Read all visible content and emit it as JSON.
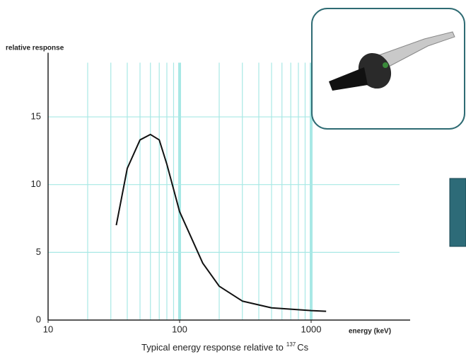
{
  "chart_data": {
    "type": "line",
    "y_label": "relative response",
    "x_label": "energy (keV)",
    "caption": {
      "text": "Typical energy response relative to",
      "superscript": "137",
      "element": "Cs"
    },
    "x": [
      33,
      40,
      50,
      60,
      70,
      80,
      100,
      150,
      200,
      300,
      500,
      1000,
      1300
    ],
    "values": [
      7,
      11.2,
      13.3,
      13.7,
      13.3,
      11.5,
      8,
      4.2,
      2.5,
      1.4,
      0.9,
      0.7,
      0.65
    ],
    "color": "#111111",
    "xscale": "log",
    "xlim": [
      10,
      5000
    ],
    "ylim": [
      0,
      19
    ],
    "xticks": [
      10,
      100,
      1000
    ],
    "yticks": [
      0,
      5,
      10,
      15
    ],
    "x_grid_lines": [
      20,
      30,
      40,
      50,
      60,
      70,
      80,
      90,
      100,
      200,
      300,
      400,
      500,
      600,
      700,
      800,
      900,
      1000
    ],
    "x_grid_major": [
      100,
      1000
    ],
    "grid": true,
    "grid_color": "#a8e8e5"
  }
}
